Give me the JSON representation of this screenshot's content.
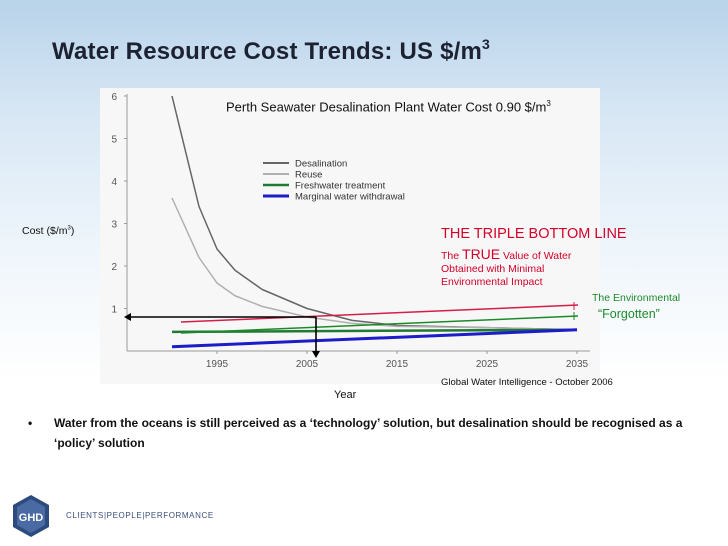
{
  "slide": {
    "title": "Water Resource Cost Trends: US $/m",
    "title_sup": "3",
    "perth_note": "Perth Seawater Desalination Plant Water Cost 0.90 $/m",
    "perth_sup": "3",
    "cost_label": "Cost ($/m",
    "cost_sup": "3",
    "cost_close": ")",
    "year_label": "Year",
    "tbl_heading": "THE TRIPLE BOTTOM LINE",
    "tbl_the": "The ",
    "tbl_true": "TRUE",
    "tbl_rest": " Value of Water Obtained with Minimal Environmental Impact",
    "env_label": "The Environmental",
    "forgotten_label": "“Forgotten”",
    "source_note": "Global Water Intelligence - October 2006",
    "bullet_symbol": "•",
    "bullet_text": "Water from the oceans is still perceived as a ‘technology’ solution, but desalination should be recognised as a ‘policy’ solution",
    "logo_text": "GHD",
    "logo_tagline": "CLIENTS|PEOPLE|PERFORMANCE"
  },
  "colors": {
    "desalination": "#666666",
    "reuse": "#b0b0b0",
    "freshwater": "#1f7a34",
    "marginal": "#1c1cc8",
    "triple_line": "#d41e4a",
    "env_line": "#1d8a2a",
    "accent_red": "#d4002a"
  },
  "chart_data": {
    "type": "line",
    "yticks": [
      "1",
      "2",
      "3",
      "4",
      "5",
      "6"
    ],
    "xticks": [
      "1995",
      "2005",
      "2015",
      "2025",
      "2035"
    ],
    "xlim": [
      1985,
      2037
    ],
    "ylim": [
      0,
      6
    ],
    "legend_position": "top-center",
    "series": [
      {
        "name": "Desalination",
        "color": "#666666",
        "width": 1.5,
        "points": [
          [
            1990,
            6
          ],
          [
            1993,
            3.4
          ],
          [
            1995,
            2.4
          ],
          [
            1997,
            1.9
          ],
          [
            2000,
            1.45
          ],
          [
            2005,
            1.0
          ],
          [
            2010,
            0.72
          ],
          [
            2015,
            0.6
          ],
          [
            2025,
            0.55
          ],
          [
            2035,
            0.5
          ]
        ]
      },
      {
        "name": "Reuse",
        "color": "#b0b0b0",
        "width": 1.5,
        "points": [
          [
            1990,
            3.6
          ],
          [
            1993,
            2.2
          ],
          [
            1995,
            1.6
          ],
          [
            1997,
            1.3
          ],
          [
            2000,
            1.05
          ],
          [
            2005,
            0.8
          ],
          [
            2010,
            0.65
          ],
          [
            2015,
            0.58
          ],
          [
            2025,
            0.55
          ],
          [
            2035,
            0.5
          ]
        ]
      },
      {
        "name": "Freshwater treatment",
        "color": "#1f7a34",
        "width": 2.5,
        "points": [
          [
            1990,
            0.45
          ],
          [
            2035,
            0.5
          ]
        ]
      },
      {
        "name": "Marginal water withdrawal",
        "color": "#1c1cc8",
        "width": 3,
        "points": [
          [
            1990,
            0.1
          ],
          [
            2035,
            0.5
          ]
        ]
      }
    ]
  }
}
